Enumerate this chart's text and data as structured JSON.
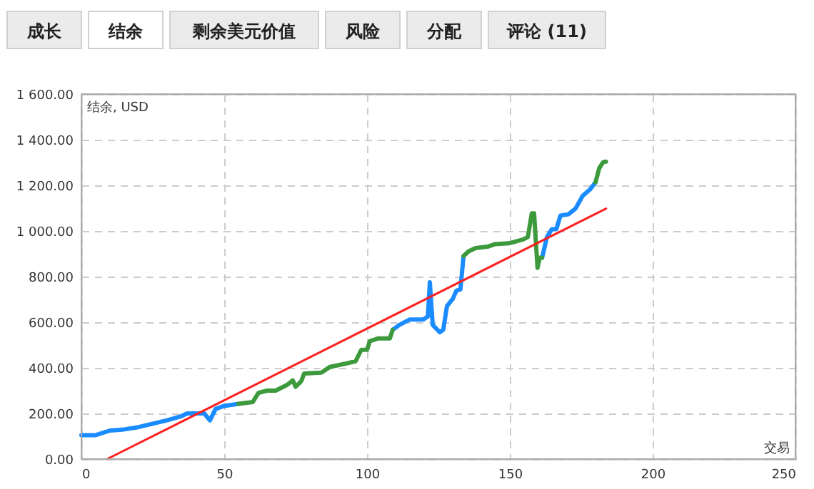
{
  "chart_data": {
    "type": "line",
    "annotations": [
      "成长",
      "结余",
      "剩余美元价值",
      "风险",
      "分配",
      "评论 (11)"
    ],
    "ylabel": "结余, USD",
    "xlabel": "交易",
    "xlim": [
      0,
      250
    ],
    "xticks": [
      0,
      50,
      100,
      150,
      200,
      250
    ],
    "ylim": [
      0,
      1600
    ],
    "yticks": [
      {
        "value": 0,
        "label": "0.00"
      },
      {
        "value": 200,
        "label": "200.00"
      },
      {
        "value": 400,
        "label": "400.00"
      },
      {
        "value": 600,
        "label": "600.00"
      },
      {
        "value": 800,
        "label": "800.00"
      },
      {
        "value": 1000,
        "label": "1 000.00"
      },
      {
        "value": 1200,
        "label": "1 200.00"
      },
      {
        "value": 1400,
        "label": "1 400.00"
      },
      {
        "value": 1600,
        "label": "1 600.00"
      }
    ],
    "grid": true,
    "marker": "none",
    "line_style": "solid",
    "series": [
      {
        "color": "#1a8cff",
        "x": [
          0,
          5,
          10,
          15,
          20,
          25,
          30,
          35,
          37,
          43,
          45,
          47,
          50,
          55,
          56,
          108,
          109,
          111.3,
          115,
          119.7,
          121.3,
          122,
          123,
          125.5,
          126.7,
          128,
          130,
          131.3,
          132.7,
          133.8,
          134,
          161.3,
          163,
          164.7,
          166.3,
          167.7,
          170.5,
          173,
          175.5,
          178,
          180
        ],
        "values": [
          105,
          105,
          125,
          130,
          140,
          155,
          170,
          188,
          200,
          200,
          170,
          220,
          233,
          242,
          null,
          null,
          567,
          588,
          612,
          612,
          625,
          775,
          588,
          556,
          567,
          671,
          702,
          738,
          744,
          890,
          null,
          883,
          973,
          1008,
          1008,
          1067,
          1073,
          1098,
          1154,
          1181,
          1213
        ]
      },
      {
        "color": "#3c9a3c",
        "x": [
          55,
          60,
          62,
          65,
          68,
          72,
          74,
          75,
          77,
          78,
          84,
          87,
          92,
          96,
          98,
          100,
          101,
          104,
          108,
          109,
          110,
          133,
          133.8,
          135.5,
          138,
          142.2,
          144.7,
          149.7,
          154.7,
          156.3,
          157.7,
          158.5,
          159.7,
          160.5,
          161.3,
          162,
          179,
          180,
          181.3,
          182.7,
          183.7
        ],
        "values": [
          242,
          250,
          290,
          300,
          300,
          325,
          345,
          317,
          342,
          375,
          379,
          404,
          417,
          429,
          479,
          479,
          517,
          529,
          529,
          567,
          null,
          null,
          890,
          910,
          925,
          931,
          942,
          946,
          963,
          973,
          1077,
          1077,
          838,
          883,
          883,
          null,
          null,
          1213,
          1275,
          1302,
          1304
        ]
      },
      {
        "color": "#ff2020",
        "type": "line",
        "x": [
          9,
          183.7
        ],
        "values": [
          0,
          1098
        ]
      }
    ]
  }
}
